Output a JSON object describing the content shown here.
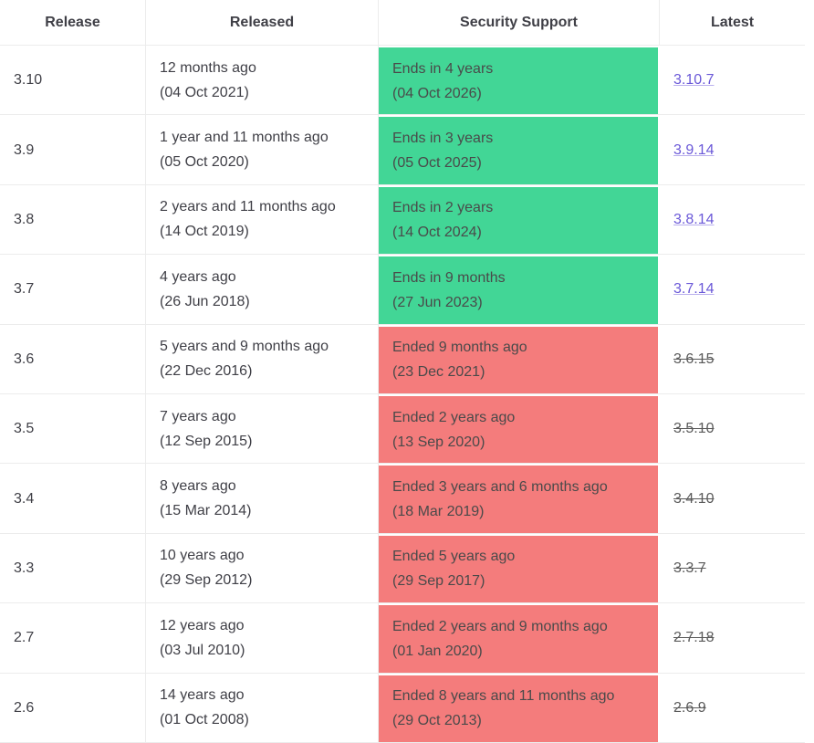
{
  "headers": {
    "release": "Release",
    "released": "Released",
    "support": "Security Support",
    "latest": "Latest"
  },
  "colors": {
    "supported": "#42d696",
    "ended": "#f47c7c",
    "link": "#6a58d8"
  },
  "rows": [
    {
      "release": "3.10",
      "released_ago": "12 months ago",
      "released_date": "(04 Oct 2021)",
      "support_text": "Ends in 4 years",
      "support_date": "(04 Oct 2026)",
      "status": "supported",
      "latest": "3.10.7"
    },
    {
      "release": "3.9",
      "released_ago": "1 year and 11 months ago",
      "released_date": "(05 Oct 2020)",
      "support_text": "Ends in 3 years",
      "support_date": "(05 Oct 2025)",
      "status": "supported",
      "latest": "3.9.14"
    },
    {
      "release": "3.8",
      "released_ago": "2 years and 11 months ago",
      "released_date": "(14 Oct 2019)",
      "support_text": "Ends in 2 years",
      "support_date": "(14 Oct 2024)",
      "status": "supported",
      "latest": "3.8.14"
    },
    {
      "release": "3.7",
      "released_ago": "4 years ago",
      "released_date": "(26 Jun 2018)",
      "support_text": "Ends in 9 months",
      "support_date": "(27 Jun 2023)",
      "status": "supported",
      "latest": "3.7.14"
    },
    {
      "release": "3.6",
      "released_ago": "5 years and 9 months ago",
      "released_date": "(22 Dec 2016)",
      "support_text": "Ended 9 months ago",
      "support_date": "(23 Dec 2021)",
      "status": "ended",
      "latest": "3.6.15"
    },
    {
      "release": "3.5",
      "released_ago": "7 years ago",
      "released_date": "(12 Sep 2015)",
      "support_text": "Ended 2 years ago",
      "support_date": "(13 Sep 2020)",
      "status": "ended",
      "latest": "3.5.10"
    },
    {
      "release": "3.4",
      "released_ago": "8 years ago",
      "released_date": "(15 Mar 2014)",
      "support_text": "Ended 3 years and 6 months ago",
      "support_date": "(18 Mar 2019)",
      "status": "ended",
      "latest": "3.4.10"
    },
    {
      "release": "3.3",
      "released_ago": "10 years ago",
      "released_date": "(29 Sep 2012)",
      "support_text": "Ended 5 years ago",
      "support_date": "(29 Sep 2017)",
      "status": "ended",
      "latest": "3.3.7"
    },
    {
      "release": "2.7",
      "released_ago": "12 years ago",
      "released_date": "(03 Jul 2010)",
      "support_text": "Ended 2 years and 9 months ago",
      "support_date": "(01 Jan 2020)",
      "status": "ended",
      "latest": "2.7.18"
    },
    {
      "release": "2.6",
      "released_ago": "14 years ago",
      "released_date": "(01 Oct 2008)",
      "support_text": "Ended 8 years and 11 months ago",
      "support_date": "(29 Oct 2013)",
      "status": "ended",
      "latest": "2.6.9"
    }
  ]
}
